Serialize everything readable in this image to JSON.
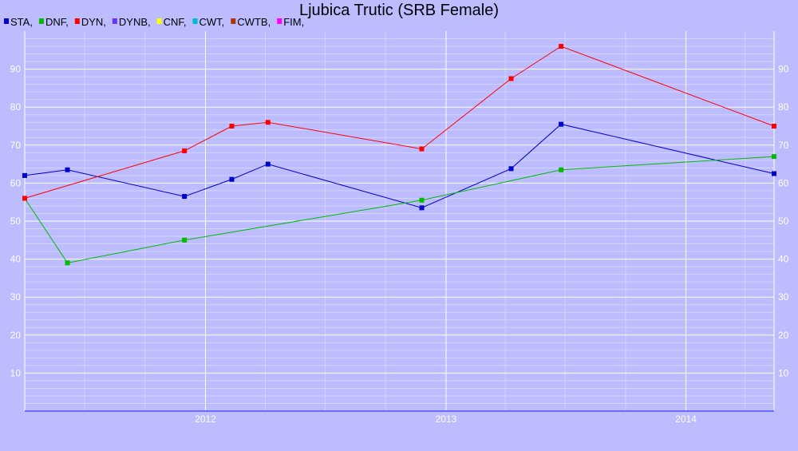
{
  "chart_data": {
    "type": "line",
    "title": "Ljubica Trutic (SRB Female)",
    "xlabel": "",
    "ylabel": "",
    "ylim": [
      0,
      100
    ],
    "y_ticks": [
      10,
      20,
      30,
      40,
      50,
      60,
      70,
      80,
      90
    ],
    "x_range": [
      "2011-04-01",
      "2014-05-15"
    ],
    "x_ticks": [
      {
        "label": "2012",
        "date": "2012-01-01"
      },
      {
        "label": "2013",
        "date": "2013-01-01"
      },
      {
        "label": "2014",
        "date": "2014-01-01"
      }
    ],
    "x_minor_gridlines": [
      "2011-07-01",
      "2011-10-01",
      "2012-04-01",
      "2012-07-01",
      "2012-10-01",
      "2013-04-01",
      "2013-07-01",
      "2013-10-01",
      "2014-04-01"
    ],
    "grid": true,
    "legend_position": "top-left",
    "legend": [
      {
        "name": "STA",
        "label": "STA,",
        "color": "#0000cc"
      },
      {
        "name": "DNF",
        "label": "DNF,",
        "color": "#00bb00"
      },
      {
        "name": "DYN",
        "label": "DYN,",
        "color": "#ff0000"
      },
      {
        "name": "DYNB",
        "label": "DYNB,",
        "color": "#6633ff"
      },
      {
        "name": "CNF",
        "label": "CNF,",
        "color": "#ffff00"
      },
      {
        "name": "CWT",
        "label": "CWT,",
        "color": "#00bbcc"
      },
      {
        "name": "CWTB",
        "label": "CWTB,",
        "color": "#aa3300"
      },
      {
        "name": "FIM",
        "label": "FIM,",
        "color": "#ff00ff"
      }
    ],
    "series": [
      {
        "name": "STA",
        "color": "#0000cc",
        "points": [
          {
            "x": "2011-04-01",
            "y": 62
          },
          {
            "x": "2011-06-05",
            "y": 63.5
          },
          {
            "x": "2011-11-30",
            "y": 56.5
          },
          {
            "x": "2012-02-10",
            "y": 61
          },
          {
            "x": "2012-04-05",
            "y": 65
          },
          {
            "x": "2012-11-25",
            "y": 53.5
          },
          {
            "x": "2013-04-10",
            "y": 63.8
          },
          {
            "x": "2013-06-25",
            "y": 75.5
          },
          {
            "x": "2014-05-15",
            "y": 62.5
          }
        ]
      },
      {
        "name": "DNF",
        "color": "#00bb00",
        "points": [
          {
            "x": "2011-04-01",
            "y": 56
          },
          {
            "x": "2011-06-05",
            "y": 39
          },
          {
            "x": "2011-11-30",
            "y": 45
          },
          {
            "x": "2012-11-25",
            "y": 55.5
          },
          {
            "x": "2013-06-25",
            "y": 63.5
          },
          {
            "x": "2014-05-15",
            "y": 67
          }
        ]
      },
      {
        "name": "DYN",
        "color": "#ff0000",
        "points": [
          {
            "x": "2011-04-01",
            "y": 56
          },
          {
            "x": "2011-11-30",
            "y": 68.5
          },
          {
            "x": "2012-02-10",
            "y": 75
          },
          {
            "x": "2012-04-05",
            "y": 76
          },
          {
            "x": "2012-11-25",
            "y": 69
          },
          {
            "x": "2013-04-10",
            "y": 87.5
          },
          {
            "x": "2013-06-25",
            "y": 96
          },
          {
            "x": "2014-05-15",
            "y": 75
          }
        ]
      }
    ]
  }
}
